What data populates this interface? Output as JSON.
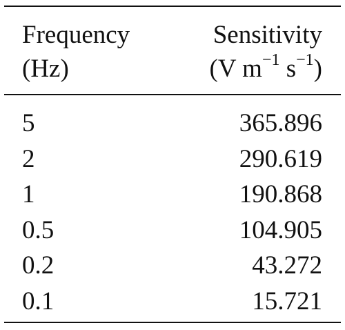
{
  "table": {
    "header": {
      "col1": {
        "line1": "Frequency",
        "line2": "(Hz)"
      },
      "col2": {
        "line1": "Sensitivity",
        "line2_prefix": "(V m",
        "line2_exp1": "−1",
        "line2_mid": " s",
        "line2_exp2": "−1",
        "line2_suffix": ")"
      }
    },
    "rows": [
      {
        "frequency": "5",
        "sensitivity": "365.896"
      },
      {
        "frequency": "2",
        "sensitivity": "290.619"
      },
      {
        "frequency": "1",
        "sensitivity": "190.868"
      },
      {
        "frequency": "0.5",
        "sensitivity": "104.905"
      },
      {
        "frequency": "0.2",
        "sensitivity": "43.272"
      },
      {
        "frequency": "0.1",
        "sensitivity": "15.721"
      }
    ]
  }
}
